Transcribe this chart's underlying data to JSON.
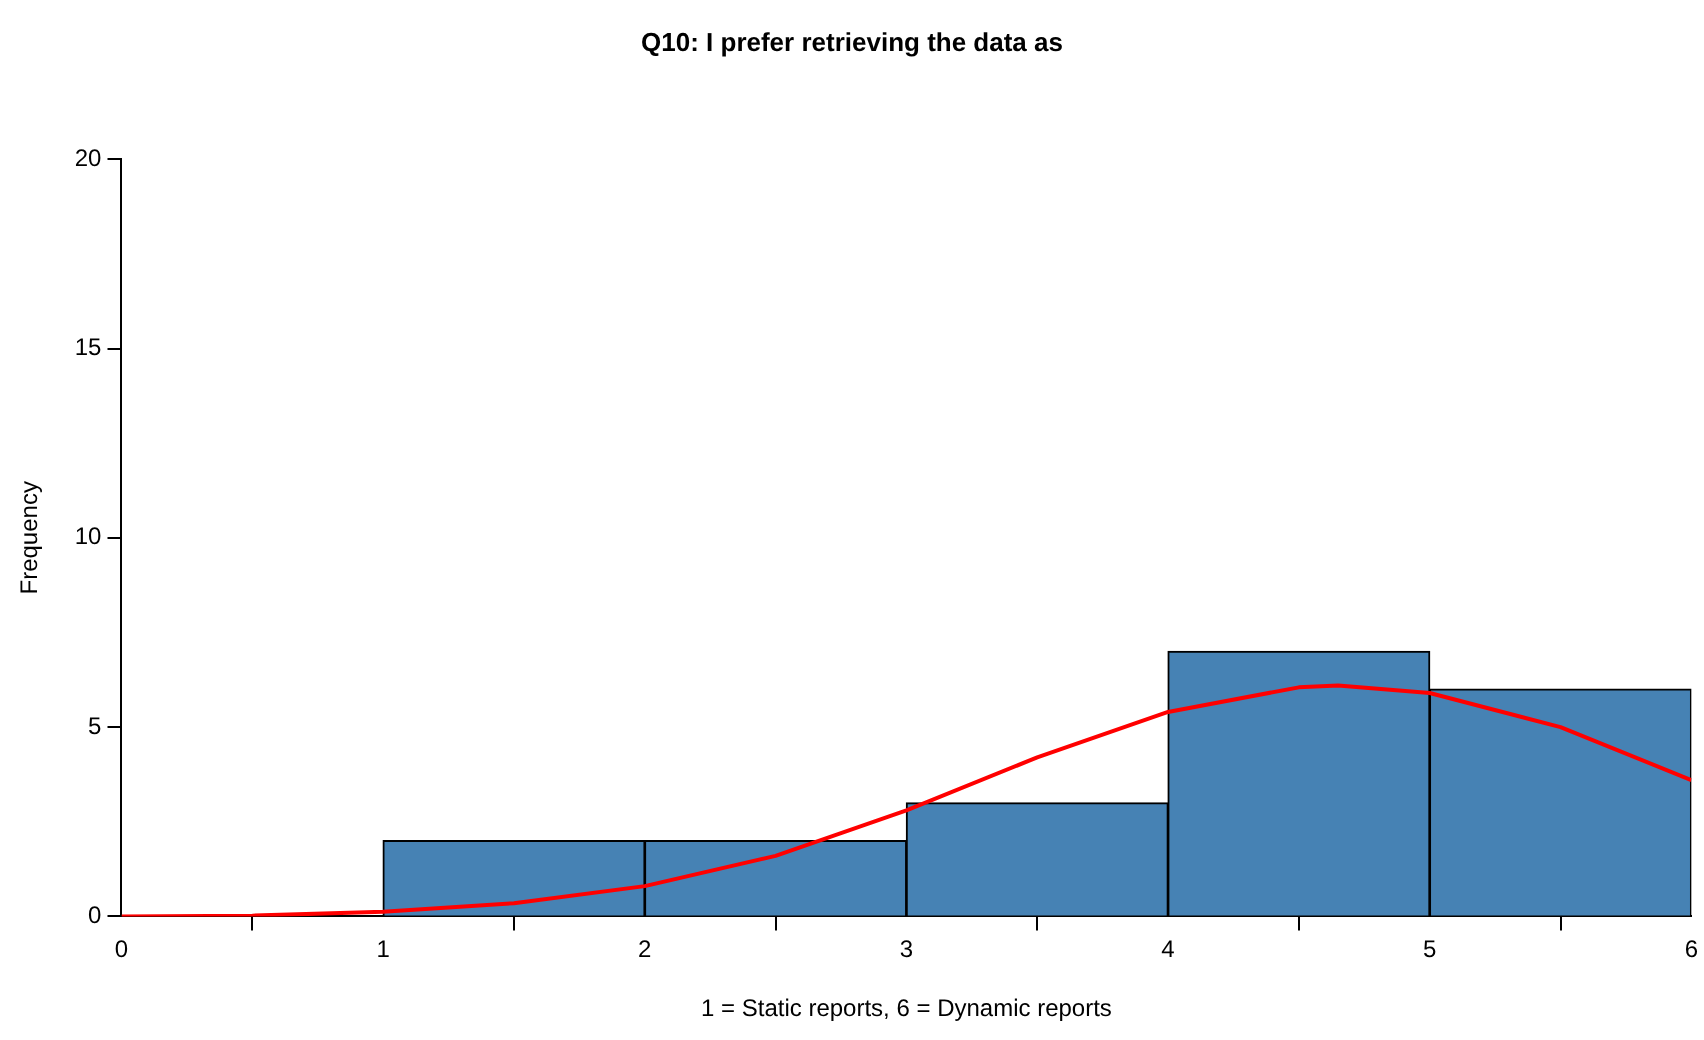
{
  "chart_data": {
    "type": "histogram",
    "title": "Q10: I prefer retrieving the data as",
    "xlabel": "1 = Static reports, 6 = Dynamic reports",
    "ylabel": "Frequency",
    "bins": [
      0,
      1,
      2,
      3,
      4,
      5,
      6
    ],
    "series": [
      {
        "color": "#4682b4",
        "values": [
          0,
          2,
          2,
          3,
          7,
          6
        ]
      },
      {
        "type": "line",
        "color": "#ff0000",
        "x": [
          0,
          0.5,
          1,
          1.5,
          2,
          2.5,
          3,
          3.5,
          4,
          4.5,
          4.65,
          5,
          5.5,
          6
        ],
        "values": [
          0,
          0.02,
          0.12,
          0.35,
          0.8,
          1.6,
          2.8,
          4.2,
          5.4,
          6.05,
          6.1,
          5.9,
          5.0,
          3.6
        ]
      }
    ],
    "xlim": [
      0,
      6
    ],
    "xticks": [
      0,
      1,
      2,
      3,
      4,
      5,
      6
    ],
    "ylim": [
      0,
      20
    ],
    "yticks": [
      0,
      5,
      10,
      15,
      20
    ]
  }
}
